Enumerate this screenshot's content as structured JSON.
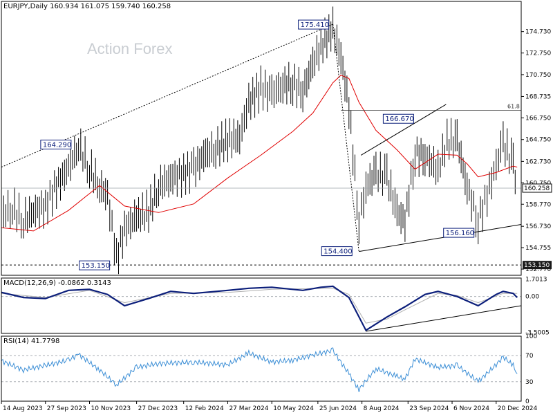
{
  "header": {
    "main": "EURJPY,Daily  160.934 161.075 159.740 160.258",
    "macd": "MACD(12,26,9) -0.0862 0.3143",
    "rsi": "RSI(14) 41.7798"
  },
  "watermark": "Action Forex",
  "colors": {
    "candle": "#000000",
    "ma": "#e00000",
    "macd_line": "#0b1e7a",
    "macd_signal": "#b0b0b0",
    "rsi_line": "#3d8fd6",
    "trendline": "#000000",
    "grid": "#9aa0a6",
    "label_border": "#0b1e7a"
  },
  "chart_data": [
    {
      "type": "line",
      "panel": "price",
      "symbol": "EURJPY",
      "timeframe": "Daily",
      "current": 160.258,
      "ylim": [
        152.2,
        176.5
      ],
      "y_ticks": [
        "174.730",
        "172.750",
        "170.750",
        "168.735",
        "166.750",
        "164.750",
        "162.730",
        "160.750",
        "158.770",
        "156.730",
        "154.755",
        "152.770"
      ],
      "price_labels": {
        "current": "160.258",
        "support": "153.150",
        "fib": "61.8",
        "fib_level": 167.45
      },
      "annotations": [
        {
          "text": "175.410",
          "date": "2024-07-10",
          "value": 175.41
        },
        {
          "text": "164.290",
          "date": "2023-10-24",
          "value": 164.29
        },
        {
          "text": "166.670",
          "date": "2024-09-30",
          "value": 166.67
        },
        {
          "text": "156.160",
          "date": "2024-12-02",
          "value": 156.16
        },
        {
          "text": "154.400",
          "date": "2024-08-05",
          "value": 154.4
        },
        {
          "text": "153.150",
          "date": "2023-12-07",
          "value": 153.15
        }
      ],
      "close_series": [
        [
          "2023-08-14",
          157.8
        ],
        [
          "2023-08-25",
          158.4
        ],
        [
          "2023-09-05",
          157.2
        ],
        [
          "2023-09-15",
          158.1
        ],
        [
          "2023-09-27",
          158.6
        ],
        [
          "2023-10-06",
          160.2
        ],
        [
          "2023-10-20",
          162.1
        ],
        [
          "2023-10-30",
          164.2
        ],
        [
          "2023-11-10",
          162.0
        ],
        [
          "2023-11-20",
          160.4
        ],
        [
          "2023-11-28",
          159.6
        ],
        [
          "2023-12-07",
          153.8
        ],
        [
          "2023-12-15",
          156.5
        ],
        [
          "2023-12-27",
          157.6
        ],
        [
          "2024-01-08",
          158.0
        ],
        [
          "2024-01-18",
          160.4
        ],
        [
          "2024-01-30",
          161.2
        ],
        [
          "2024-02-12",
          161.6
        ],
        [
          "2024-02-22",
          162.1
        ],
        [
          "2024-03-05",
          163.4
        ],
        [
          "2024-03-15",
          163.9
        ],
        [
          "2024-03-27",
          164.7
        ],
        [
          "2024-04-08",
          165.0
        ],
        [
          "2024-04-17",
          168.2
        ],
        [
          "2024-04-29",
          169.5
        ],
        [
          "2024-05-10",
          169.0
        ],
        [
          "2024-05-21",
          169.8
        ],
        [
          "2024-05-31",
          170.0
        ],
        [
          "2024-06-10",
          169.2
        ],
        [
          "2024-06-20",
          171.7
        ],
        [
          "2024-06-28",
          173.4
        ],
        [
          "2024-07-10",
          175.0
        ],
        [
          "2024-07-18",
          172.3
        ],
        [
          "2024-07-26",
          167.8
        ],
        [
          "2024-08-05",
          157.2
        ],
        [
          "2024-08-12",
          160.4
        ],
        [
          "2024-08-22",
          161.6
        ],
        [
          "2024-09-02",
          161.3
        ],
        [
          "2024-09-12",
          158.0
        ],
        [
          "2024-09-20",
          157.2
        ],
        [
          "2024-09-30",
          163.5
        ],
        [
          "2024-10-10",
          163.2
        ],
        [
          "2024-10-23",
          162.0
        ],
        [
          "2024-11-01",
          164.5
        ],
        [
          "2024-11-11",
          164.7
        ],
        [
          "2024-11-21",
          160.4
        ],
        [
          "2024-12-02",
          157.2
        ],
        [
          "2024-12-11",
          159.6
        ],
        [
          "2024-12-20",
          162.4
        ],
        [
          "2024-12-27",
          164.4
        ],
        [
          "2025-01-06",
          162.4
        ],
        [
          "2025-01-10",
          160.3
        ]
      ],
      "ma_series": [
        [
          "2023-08-14",
          156.6
        ],
        [
          "2023-09-15",
          156.3
        ],
        [
          "2023-10-20",
          158.2
        ],
        [
          "2023-11-20",
          160.5
        ],
        [
          "2023-12-15",
          158.6
        ],
        [
          "2024-01-18",
          158.0
        ],
        [
          "2024-02-22",
          158.8
        ],
        [
          "2024-03-27",
          161.2
        ],
        [
          "2024-04-29",
          163.3
        ],
        [
          "2024-05-31",
          165.5
        ],
        [
          "2024-06-20",
          167.2
        ],
        [
          "2024-07-10",
          170.0
        ],
        [
          "2024-07-18",
          170.7
        ],
        [
          "2024-07-26",
          170.4
        ],
        [
          "2024-08-05",
          168.2
        ],
        [
          "2024-08-22",
          165.6
        ],
        [
          "2024-09-12",
          163.8
        ],
        [
          "2024-09-30",
          162.0
        ],
        [
          "2024-10-23",
          163.4
        ],
        [
          "2024-11-11",
          163.3
        ],
        [
          "2024-11-21",
          162.5
        ],
        [
          "2024-12-02",
          161.3
        ],
        [
          "2024-12-20",
          161.7
        ],
        [
          "2025-01-06",
          162.3
        ],
        [
          "2025-01-10",
          162.2
        ]
      ],
      "trendlines": [
        {
          "from": [
            "2023-08-14",
            162.2
          ],
          "to": [
            "2024-07-10",
            175.41
          ],
          "style": "dotted"
        },
        {
          "from": [
            "2024-07-10",
            175.41
          ],
          "to": [
            "2024-08-05",
            154.4
          ],
          "style": "dotted"
        },
        {
          "from": [
            "2024-08-05",
            154.4
          ],
          "to": [
            "2025-01-14",
            156.9
          ],
          "style": "solid"
        },
        {
          "from": [
            "2024-08-07",
            163.3
          ],
          "to": [
            "2024-10-31",
            168.0
          ],
          "style": "solid"
        },
        {
          "from": [
            "2024-07-18",
            167.45
          ],
          "to": [
            "2025-01-14",
            167.45
          ],
          "style": "solid-fib"
        },
        {
          "from": [
            "2023-08-14",
            153.15
          ],
          "to": [
            "2025-01-14",
            153.15
          ],
          "style": "dashed"
        },
        {
          "from": [
            "2023-08-14",
            160.258
          ],
          "to": [
            "2025-01-14",
            160.258
          ],
          "style": "current"
        }
      ]
    },
    {
      "type": "line",
      "panel": "macd",
      "name": "MACD(12,26,9)",
      "values_label": "-0.0862 0.3143",
      "ylim": [
        -3.6,
        1.8
      ],
      "y_ticks": [
        "1.7013",
        "0.00",
        "-3.5005"
      ],
      "macd_series": [
        [
          "2023-08-14",
          0.4
        ],
        [
          "2023-09-05",
          -0.1
        ],
        [
          "2023-09-27",
          -0.2
        ],
        [
          "2023-10-20",
          0.6
        ],
        [
          "2023-11-10",
          0.7
        ],
        [
          "2023-11-28",
          0.2
        ],
        [
          "2023-12-15",
          -0.9
        ],
        [
          "2024-01-08",
          -0.2
        ],
        [
          "2024-01-30",
          0.5
        ],
        [
          "2024-02-22",
          0.3
        ],
        [
          "2024-03-27",
          0.6
        ],
        [
          "2024-04-17",
          0.8
        ],
        [
          "2024-05-10",
          0.9
        ],
        [
          "2024-06-10",
          0.6
        ],
        [
          "2024-06-28",
          0.9
        ],
        [
          "2024-07-10",
          1.0
        ],
        [
          "2024-07-26",
          -0.1
        ],
        [
          "2024-08-12",
          -3.3
        ],
        [
          "2024-09-02",
          -2.0
        ],
        [
          "2024-09-20",
          -1.0
        ],
        [
          "2024-10-10",
          0.2
        ],
        [
          "2024-10-23",
          0.5
        ],
        [
          "2024-11-11",
          0.0
        ],
        [
          "2024-12-02",
          -0.9
        ],
        [
          "2024-12-20",
          0.2
        ],
        [
          "2024-12-27",
          0.5
        ],
        [
          "2025-01-06",
          0.3
        ],
        [
          "2025-01-10",
          -0.1
        ]
      ],
      "signal_series": [
        [
          "2023-08-14",
          0.3
        ],
        [
          "2023-09-27",
          -0.1
        ],
        [
          "2023-11-10",
          0.6
        ],
        [
          "2023-12-15",
          -0.6
        ],
        [
          "2024-01-30",
          0.3
        ],
        [
          "2024-03-27",
          0.4
        ],
        [
          "2024-05-10",
          0.7
        ],
        [
          "2024-07-10",
          0.8
        ],
        [
          "2024-07-26",
          0.2
        ],
        [
          "2024-08-12",
          -2.6
        ],
        [
          "2024-09-02",
          -2.2
        ],
        [
          "2024-09-20",
          -1.3
        ],
        [
          "2024-10-23",
          0.3
        ],
        [
          "2024-11-11",
          0.1
        ],
        [
          "2024-12-02",
          -0.6
        ],
        [
          "2024-12-27",
          0.3
        ],
        [
          "2025-01-10",
          0.3
        ]
      ],
      "trendline": {
        "from": [
          "2024-08-12",
          -3.4
        ],
        "to": [
          "2025-01-14",
          -0.9
        ]
      }
    },
    {
      "type": "line",
      "panel": "rsi",
      "name": "RSI(14)",
      "value_label": "41.7798",
      "ylim": [
        0,
        100
      ],
      "y_ticks": [
        "100",
        "70",
        "30",
        "0"
      ],
      "levels": [
        70,
        30
      ],
      "series": [
        [
          "2023-08-14",
          62
        ],
        [
          "2023-09-05",
          48
        ],
        [
          "2023-09-27",
          55
        ],
        [
          "2023-10-20",
          63
        ],
        [
          "2023-10-30",
          72
        ],
        [
          "2023-11-20",
          48
        ],
        [
          "2023-12-07",
          25
        ],
        [
          "2023-12-27",
          52
        ],
        [
          "2024-01-18",
          58
        ],
        [
          "2024-02-22",
          60
        ],
        [
          "2024-03-27",
          56
        ],
        [
          "2024-04-17",
          74
        ],
        [
          "2024-05-10",
          60
        ],
        [
          "2024-05-31",
          63
        ],
        [
          "2024-06-20",
          71
        ],
        [
          "2024-07-10",
          78
        ],
        [
          "2024-07-26",
          42
        ],
        [
          "2024-08-05",
          18
        ],
        [
          "2024-08-22",
          50
        ],
        [
          "2024-09-12",
          38
        ],
        [
          "2024-09-20",
          34
        ],
        [
          "2024-09-30",
          65
        ],
        [
          "2024-10-23",
          52
        ],
        [
          "2024-11-11",
          55
        ],
        [
          "2024-12-02",
          30
        ],
        [
          "2024-12-20",
          56
        ],
        [
          "2024-12-27",
          68
        ],
        [
          "2025-01-06",
          55
        ],
        [
          "2025-01-10",
          42
        ]
      ]
    }
  ],
  "x_axis_labels": [
    {
      "text": "14 Aug 2023",
      "date": "2023-08-14"
    },
    {
      "text": "27 Sep 2023",
      "date": "2023-09-27"
    },
    {
      "text": "10 Nov 2023",
      "date": "2023-11-10"
    },
    {
      "text": "27 Dec 2023",
      "date": "2023-12-27"
    },
    {
      "text": "12 Feb 2024",
      "date": "2024-02-12"
    },
    {
      "text": "27 Mar 2024",
      "date": "2024-03-27"
    },
    {
      "text": "10 May 2024",
      "date": "2024-05-10"
    },
    {
      "text": "25 Jun 2024",
      "date": "2024-06-25"
    },
    {
      "text": "8 Aug 2024",
      "date": "2024-08-08"
    },
    {
      "text": "23 Sep 2024",
      "date": "2024-09-23"
    },
    {
      "text": "6 Nov 2024",
      "date": "2024-11-06"
    },
    {
      "text": "20 Dec 2024",
      "date": "2024-12-20"
    }
  ]
}
